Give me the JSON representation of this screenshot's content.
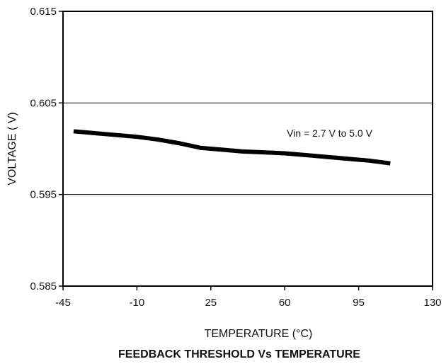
{
  "chart_data": {
    "type": "line",
    "title": "FEEDBACK THRESHOLD Vs TEMPERATURE",
    "xlabel": "TEMPERATURE (°C)",
    "ylabel": "VOLTAGE ( V)",
    "xlim": [
      -45,
      130
    ],
    "ylim": [
      0.585,
      0.615
    ],
    "x_ticks": [
      -45,
      -10,
      25,
      60,
      95,
      130
    ],
    "x_tick_labels": [
      "-45",
      "-10",
      "25",
      "60",
      "95",
      "130"
    ],
    "y_ticks": [
      0.585,
      0.595,
      0.605,
      0.615
    ],
    "y_tick_labels": [
      "0.585",
      "0.595",
      "0.605",
      "0.615"
    ],
    "gridlines_y": [
      0.595,
      0.605
    ],
    "series": [
      {
        "x": [
          -40,
          -25,
          -10,
          0,
          10,
          20,
          30,
          40,
          50,
          60,
          70,
          80,
          90,
          100,
          110
        ],
        "y": [
          0.6019,
          0.6016,
          0.6013,
          0.601,
          0.6006,
          0.6001,
          0.5999,
          0.5997,
          0.5996,
          0.5995,
          0.5993,
          0.5991,
          0.5989,
          0.5987,
          0.5984
        ]
      }
    ],
    "annotations": [
      {
        "text": "Vin = 2.7 V to 5.0 V",
        "x": 61,
        "y": 0.6013
      }
    ],
    "colors": {
      "line": "#000000",
      "grid": "#000000",
      "frame": "#000000"
    }
  }
}
